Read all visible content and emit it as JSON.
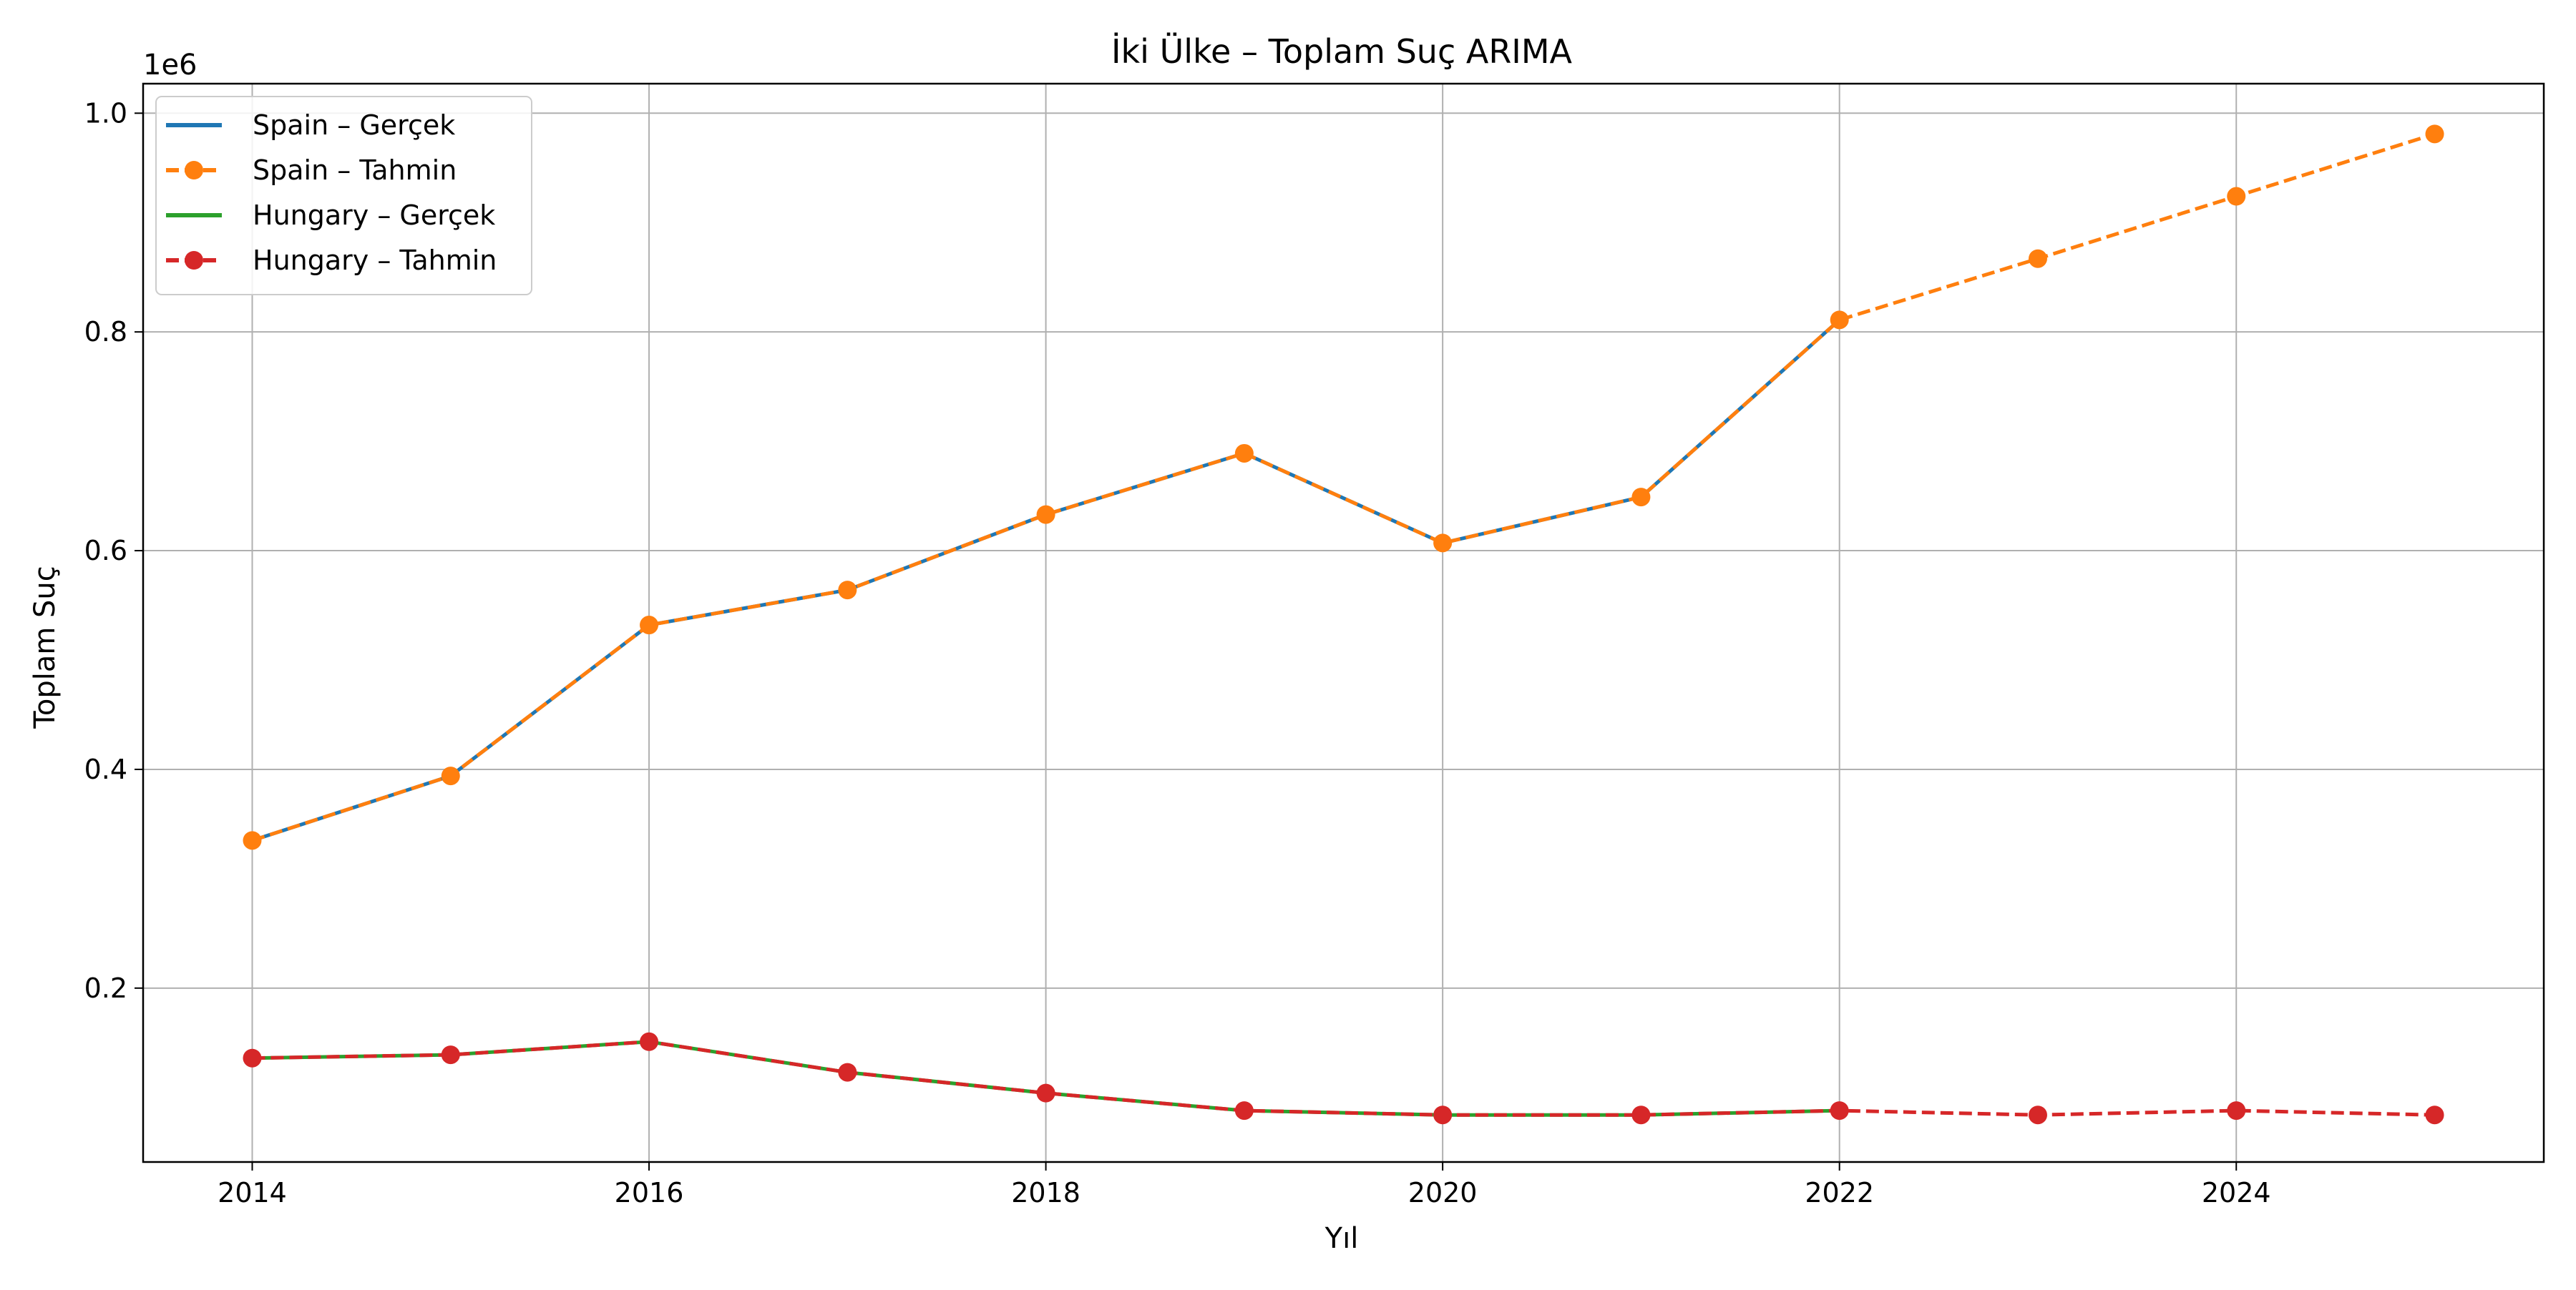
{
  "chart_data": {
    "type": "line",
    "title": "İki Ülke – Toplam Suç ARIMA",
    "xlabel": "Yıl",
    "ylabel": "Toplam Suç",
    "y_offset_label": "1e6",
    "xlim": [
      2013.45,
      2025.55
    ],
    "ylim": [
      0.041,
      1.027
    ],
    "x_ticks": [
      2014,
      2016,
      2018,
      2020,
      2022,
      2024
    ],
    "x_tick_labels": [
      "2014",
      "2016",
      "2018",
      "2020",
      "2022",
      "2024"
    ],
    "y_ticks": [
      0.2,
      0.4,
      0.6,
      0.8,
      1.0
    ],
    "y_tick_labels": [
      "0.2",
      "0.4",
      "0.6",
      "0.8",
      "1.0"
    ],
    "grid": true,
    "legend_position": "top-left",
    "series": [
      {
        "name": "Spain – Gerçek",
        "color": "#1f77b4",
        "style": "solid",
        "marker": false,
        "x": [
          2014,
          2015,
          2016,
          2017,
          2018,
          2019,
          2020,
          2021,
          2022
        ],
        "y": [
          0.335,
          0.394,
          0.532,
          0.564,
          0.633,
          0.689,
          0.607,
          0.649,
          0.811
        ]
      },
      {
        "name": "Spain – Tahmin",
        "color": "#ff7f0e",
        "style": "dashed",
        "marker": true,
        "x": [
          2014,
          2015,
          2016,
          2017,
          2018,
          2019,
          2020,
          2021,
          2022,
          2023,
          2024,
          2025
        ],
        "y": [
          0.335,
          0.394,
          0.532,
          0.564,
          0.633,
          0.689,
          0.607,
          0.649,
          0.811,
          0.867,
          0.924,
          0.981
        ]
      },
      {
        "name": "Hungary – Gerçek",
        "color": "#2ca02c",
        "style": "solid",
        "marker": false,
        "x": [
          2014,
          2015,
          2016,
          2017,
          2018,
          2019,
          2020,
          2021,
          2022
        ],
        "y": [
          0.136,
          0.139,
          0.151,
          0.123,
          0.104,
          0.088,
          0.084,
          0.084,
          0.088
        ]
      },
      {
        "name": "Hungary – Tahmin",
        "color": "#d62728",
        "style": "dashed",
        "marker": true,
        "x": [
          2014,
          2015,
          2016,
          2017,
          2018,
          2019,
          2020,
          2021,
          2022,
          2023,
          2024,
          2025
        ],
        "y": [
          0.136,
          0.139,
          0.151,
          0.123,
          0.104,
          0.088,
          0.084,
          0.084,
          0.088,
          0.084,
          0.088,
          0.084
        ]
      }
    ]
  }
}
